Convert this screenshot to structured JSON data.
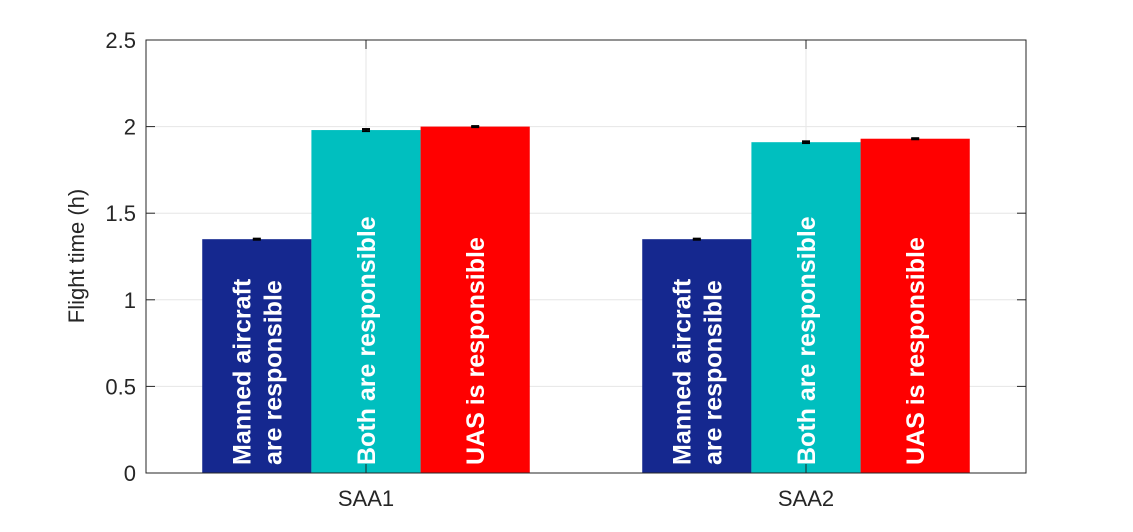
{
  "chart_data": {
    "type": "bar",
    "categories": [
      "SAA1",
      "SAA2"
    ],
    "series": [
      {
        "name": "Manned aircraft are responsible",
        "label_lines": [
          "Manned aircraft",
          "are responsible"
        ],
        "color": "#15288f",
        "values": [
          1.35,
          1.35
        ],
        "errors": [
          0.003,
          0.003
        ]
      },
      {
        "name": "Both are responsible",
        "label_lines": [
          "Both are responsible"
        ],
        "color": "#00bfbf",
        "values": [
          1.98,
          1.91
        ],
        "errors": [
          0.006,
          0.005
        ]
      },
      {
        "name": "UAS is responsible",
        "label_lines": [
          "UAS is responsible"
        ],
        "color": "#ff0000",
        "values": [
          2.0,
          1.93
        ],
        "errors": [
          0.003,
          0.003
        ]
      }
    ],
    "ylabel": "Flight time (h)",
    "xlabel": "",
    "ylim": [
      0,
      2.5
    ],
    "yticks": [
      0,
      0.5,
      1,
      1.5,
      2,
      2.5
    ],
    "ytick_labels": [
      "0",
      "0.5",
      "1",
      "1.5",
      "2",
      "2.5"
    ],
    "grid": true,
    "error_bars": true
  }
}
